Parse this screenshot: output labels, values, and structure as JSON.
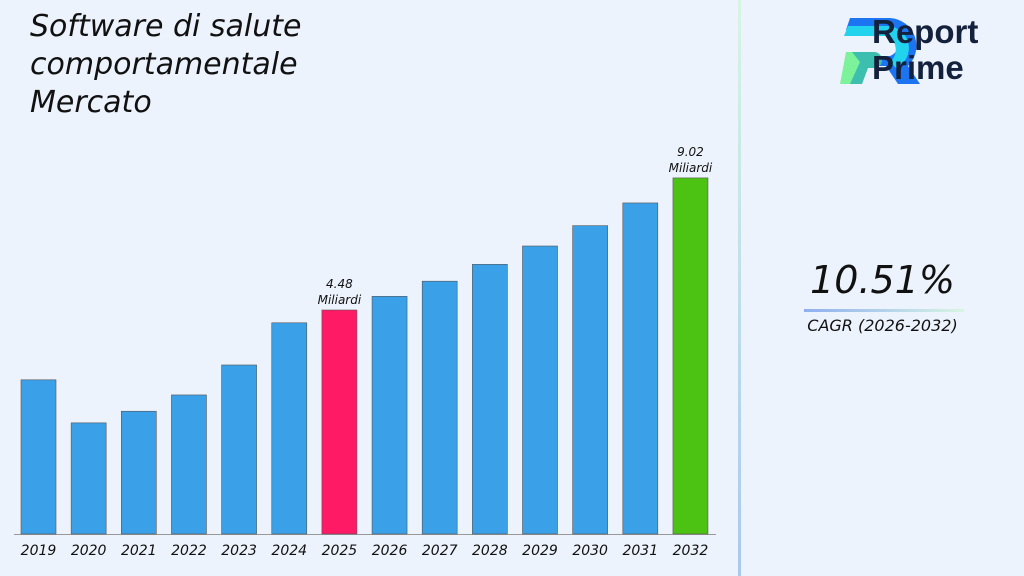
{
  "chart_data": {
    "type": "bar",
    "title": "Software di salute comportamentale Mercato",
    "categories": [
      "2019",
      "2020",
      "2021",
      "2022",
      "2023",
      "2024",
      "2025",
      "2026",
      "2027",
      "2028",
      "2029",
      "2030",
      "2031",
      "2032"
    ],
    "values": [
      2.08,
      0.6,
      1.0,
      1.56,
      2.59,
      4.04,
      4.48,
      4.95,
      5.47,
      6.05,
      6.68,
      7.38,
      8.16,
      9.02
    ],
    "unit": "Miliardi",
    "ylim": [
      -3.22,
      9.5
    ],
    "grid": false,
    "colors": {
      "default": "#3aa0e8",
      "highlight_2025": "#ff1a66",
      "highlight_2032": "#4cc313"
    },
    "annotations": [
      {
        "category": "2025",
        "value_text": "4.48",
        "unit_text": "Miliardi"
      },
      {
        "category": "2032",
        "value_text": "9.02",
        "unit_text": "Miliardi"
      }
    ]
  },
  "brand": {
    "name_line1": "Report",
    "name_line2": "Prime"
  },
  "cagr": {
    "value": "10.51%",
    "label": "CAGR (2026-2032)"
  }
}
